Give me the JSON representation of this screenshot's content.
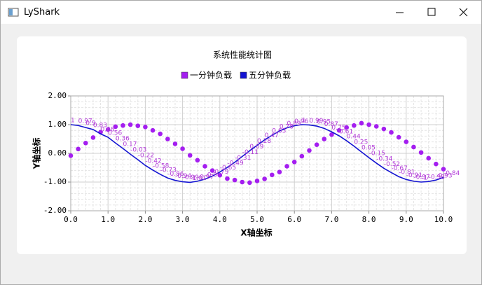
{
  "window": {
    "title": "LyShark"
  },
  "chart_data": {
    "type": "scatter-line",
    "title": "系统性能统计图",
    "x_label": "X轴坐标",
    "y_label": "Y轴坐标",
    "x": [
      0,
      0.2,
      0.4,
      0.6,
      0.8,
      1.0,
      1.2,
      1.4,
      1.6,
      1.8,
      2.0,
      2.2,
      2.4,
      2.6,
      2.8,
      3.0,
      3.2,
      3.4,
      3.6,
      3.8,
      4.0,
      4.2,
      4.4,
      4.6,
      4.8,
      5.0,
      5.2,
      5.4,
      5.6,
      5.8,
      6.0,
      6.2,
      6.4,
      6.6,
      6.8,
      7.0,
      7.2,
      7.4,
      7.6,
      7.8,
      8.0,
      8.2,
      8.4,
      8.6,
      8.8,
      9.0,
      9.2,
      9.4,
      9.6,
      9.8,
      10.0
    ],
    "series": [
      {
        "name": "一分钟负载",
        "kind": "scatter",
        "color": "#a41ef0",
        "values": [
          -0.08,
          0.15,
          0.36,
          0.55,
          0.74,
          0.83,
          0.93,
          0.97,
          1.0,
          0.96,
          0.92,
          0.8,
          0.68,
          0.5,
          0.33,
          0.16,
          -0.07,
          -0.24,
          -0.45,
          -0.6,
          -0.76,
          -0.88,
          -0.93,
          -1.0,
          -1.02,
          -0.96,
          -0.89,
          -0.75,
          -0.65,
          -0.45,
          -0.3,
          -0.1,
          0.1,
          0.3,
          0.5,
          0.65,
          0.8,
          0.9,
          0.97,
          1.05,
          1.0,
          0.94,
          0.85,
          0.73,
          0.56,
          0.4,
          0.22,
          0.03,
          -0.17,
          -0.37,
          -0.55
        ]
      },
      {
        "name": "五分钟负载",
        "kind": "line",
        "color": "#1414d2",
        "point_labels": true,
        "values": [
          1.0,
          0.97,
          0.9,
          0.83,
          0.68,
          0.56,
          0.36,
          0.17,
          -0.03,
          -0.22,
          -0.42,
          -0.58,
          -0.73,
          -0.86,
          -0.94,
          -0.99,
          -1.01,
          -0.97,
          -0.9,
          -0.79,
          -0.65,
          -0.49,
          -0.31,
          -0.11,
          0.09,
          0.28,
          0.47,
          0.63,
          0.78,
          0.89,
          0.96,
          1.0,
          0.99,
          0.95,
          0.87,
          0.75,
          0.61,
          0.44,
          0.25,
          0.05,
          -0.15,
          -0.34,
          -0.52,
          -0.67,
          -0.81,
          -0.91,
          -0.97,
          -1.0,
          -0.98,
          -0.93,
          -0.84
        ]
      }
    ],
    "xlim": [
      0,
      10
    ],
    "xticks": [
      {
        "value": 0,
        "label": "0.0"
      },
      {
        "value": 1,
        "label": "1.0"
      },
      {
        "value": 2,
        "label": "2.0"
      },
      {
        "value": 3,
        "label": "3.0"
      },
      {
        "value": 4,
        "label": "4.0"
      },
      {
        "value": 5,
        "label": "5.0"
      },
      {
        "value": 6,
        "label": "6.0"
      },
      {
        "value": 7,
        "label": "7.0"
      },
      {
        "value": 8,
        "label": "8.0"
      },
      {
        "value": 9,
        "label": "9.0"
      },
      {
        "value": 10,
        "label": "10.0"
      }
    ],
    "ylim": [
      -2,
      2
    ],
    "yticks": [
      {
        "value": -2,
        "label": "-2.00"
      },
      {
        "value": -1,
        "label": "-1.00"
      },
      {
        "value": 0,
        "label": "0.00"
      },
      {
        "value": 1,
        "label": "1.00"
      },
      {
        "value": 2,
        "label": "2.00"
      }
    ],
    "grid": true,
    "minor_grid": true,
    "legend": "top"
  }
}
